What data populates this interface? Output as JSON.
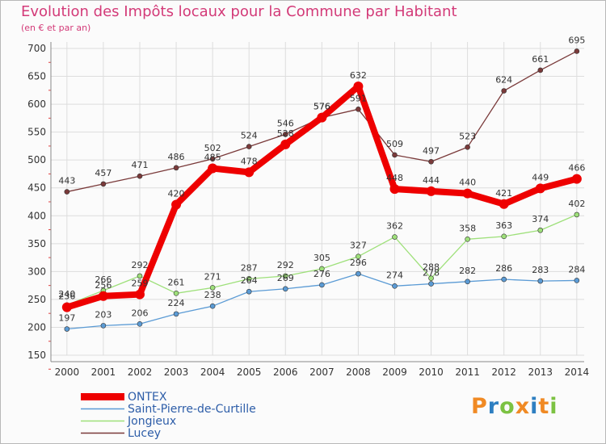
{
  "title": "Evolution des Impôts locaux pour la Commune par Habitant",
  "subtitle": "(en € et par an)",
  "logo_text": "Proxiti",
  "logo_colors": [
    "#f08a24",
    "#2e7fc1",
    "#7cc242",
    "#f08a24",
    "#2e7fc1",
    "#f08a24",
    "#7cc242"
  ],
  "chart_data": {
    "type": "line",
    "x": [
      2000,
      2001,
      2002,
      2003,
      2004,
      2005,
      2006,
      2007,
      2008,
      2009,
      2010,
      2011,
      2012,
      2013,
      2014
    ],
    "ylim": [
      150,
      700
    ],
    "yticks": [
      150,
      200,
      250,
      300,
      350,
      400,
      450,
      500,
      550,
      600,
      650,
      700
    ],
    "grid": true,
    "legend_position": "bottom-left",
    "series": [
      {
        "name": "ONTEX",
        "color": "#ee0000",
        "values": [
          236,
          256,
          259,
          420,
          485,
          478,
          528,
          576,
          632,
          448,
          444,
          440,
          421,
          449,
          466
        ],
        "labels": [
          "236",
          "256",
          "259",
          "420",
          "485",
          "478",
          "528",
          "576",
          "632",
          "448",
          "444",
          "440",
          "421",
          "449",
          "466"
        ]
      },
      {
        "name": "Saint-Pierre-de-Curtille",
        "color": "#5b9bd5",
        "values": [
          197,
          203,
          206,
          224,
          238,
          264,
          269,
          276,
          296,
          274,
          278,
          282,
          286,
          283,
          284
        ],
        "labels": [
          "197",
          "203",
          "206",
          "224",
          "238",
          "264",
          "269",
          "276",
          "296",
          "274",
          "278",
          "282",
          "286",
          "283",
          "284"
        ]
      },
      {
        "name": "Jongieux",
        "color": "#9ee07a",
        "values": [
          240,
          266,
          292,
          261,
          271,
          287,
          292,
          305,
          327,
          362,
          288,
          358,
          363,
          374,
          402
        ],
        "labels": [
          "240",
          "266",
          "292",
          "261",
          "271",
          "287",
          "292",
          "305",
          "327",
          "362",
          "288",
          "358",
          "363",
          "374",
          "402"
        ]
      },
      {
        "name": "Lucey",
        "color": "#7a3a3a",
        "values": [
          443,
          457,
          471,
          486,
          502,
          524,
          546,
          576,
          591,
          509,
          497,
          523,
          624,
          661,
          695
        ],
        "labels": [
          "443",
          "457",
          "471",
          "486",
          "502",
          "524",
          "546",
          "576",
          "591",
          "509",
          "497",
          "523",
          "624",
          "661",
          "695"
        ]
      }
    ]
  }
}
